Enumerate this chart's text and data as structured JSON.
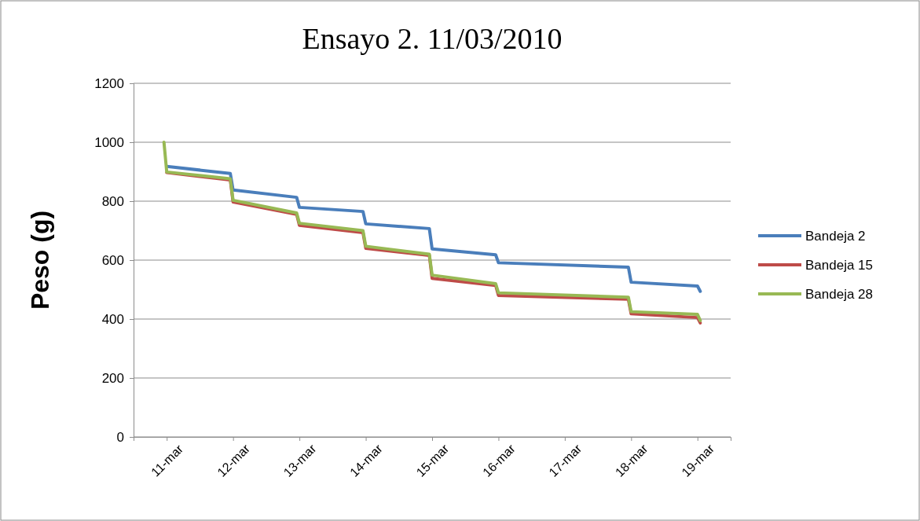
{
  "chart_data": {
    "type": "line",
    "title": "Ensayo 2.  11/03/2010",
    "ylabel": "Peso (g)",
    "xlim": [
      "2010-03-10T12:00",
      "2010-03-19T12:00"
    ],
    "xticks": [
      {
        "value": "2010-03-11",
        "label": "11-mar"
      },
      {
        "value": "2010-03-12",
        "label": "12-mar"
      },
      {
        "value": "2010-03-13",
        "label": "13-mar"
      },
      {
        "value": "2010-03-14",
        "label": "14-mar"
      },
      {
        "value": "2010-03-15",
        "label": "15-mar"
      },
      {
        "value": "2010-03-16",
        "label": "16-mar"
      },
      {
        "value": "2010-03-17",
        "label": "17-mar"
      },
      {
        "value": "2010-03-18",
        "label": "18-mar"
      },
      {
        "value": "2010-03-19",
        "label": "19-mar"
      }
    ],
    "ylim": [
      0,
      1200
    ],
    "yticks": [
      0,
      200,
      400,
      600,
      800,
      1000,
      1200
    ],
    "grid": "y",
    "legend": "right",
    "marker": "none",
    "line_style": "solid",
    "series": [
      {
        "name": "Bandeja 2",
        "color": "#4a7ebb",
        "x": [
          "2010-03-11",
          "2010-03-11T23:00",
          "2010-03-12",
          "2010-03-12T23:00",
          "2010-03-13",
          "2010-03-13T23:00",
          "2010-03-14",
          "2010-03-14T23:00",
          "2010-03-15",
          "2010-03-15T23:00",
          "2010-03-16",
          "2010-03-17T23:00",
          "2010-03-18",
          "2010-03-19",
          "2010-03-19T01:00"
        ],
        "values": [
          918,
          894,
          838,
          813,
          779,
          765,
          723,
          707,
          638,
          618,
          591,
          576,
          525,
          512,
          494
        ]
      },
      {
        "name": "Bandeja 15",
        "color": "#be4b48",
        "x": [
          "2010-03-11",
          "2010-03-11T23:00",
          "2010-03-12",
          "2010-03-12T23:00",
          "2010-03-13",
          "2010-03-13T23:00",
          "2010-03-14",
          "2010-03-14T23:00",
          "2010-03-15",
          "2010-03-15T23:00",
          "2010-03-16",
          "2010-03-17T23:00",
          "2010-03-18",
          "2010-03-19",
          "2010-03-19T01:00"
        ],
        "values": [
          897,
          872,
          797,
          755,
          718,
          693,
          640,
          616,
          538,
          514,
          480,
          467,
          418,
          405,
          387
        ]
      },
      {
        "name": "Bandeja 28",
        "color": "#98b954",
        "x": [
          "2010-03-10T23:00",
          "2010-03-11",
          "2010-03-11T23:00",
          "2010-03-12",
          "2010-03-12T23:00",
          "2010-03-13",
          "2010-03-13T23:00",
          "2010-03-14",
          "2010-03-14T23:00",
          "2010-03-15",
          "2010-03-15T23:00",
          "2010-03-16",
          "2010-03-17T23:00",
          "2010-03-18",
          "2010-03-19",
          "2010-03-19T01:00"
        ],
        "values": [
          1000,
          899,
          876,
          803,
          760,
          725,
          700,
          647,
          620,
          549,
          520,
          489,
          474,
          425,
          416,
          395
        ]
      }
    ]
  }
}
